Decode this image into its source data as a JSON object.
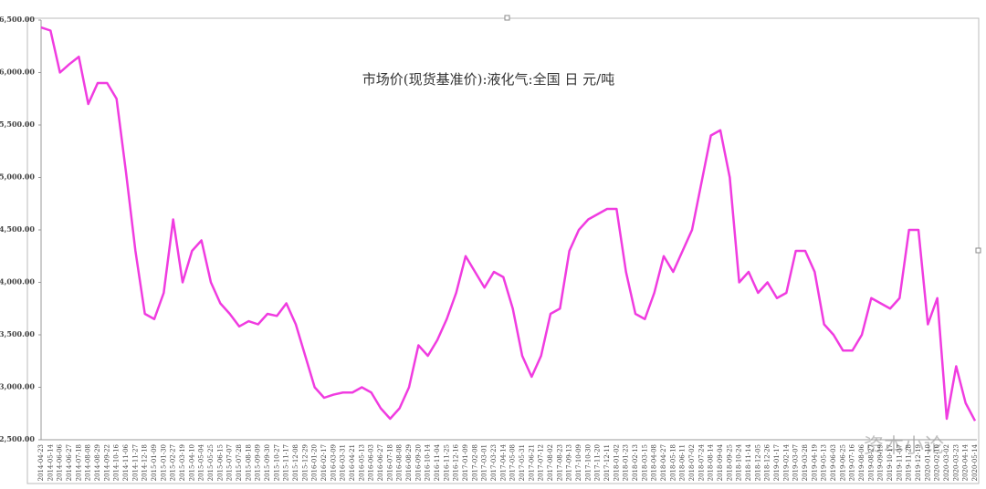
{
  "chart_data": {
    "type": "line",
    "title": "市场价(现货基准价):液化气:全国 日 元/吨",
    "watermark": "资本小论",
    "categories": [
      "2014-04-23",
      "2014-05-14",
      "2014-06-06",
      "2014-06-27",
      "2014-07-18",
      "2014-08-08",
      "2014-08-29",
      "2014-09-22",
      "2014-10-16",
      "2014-11-06",
      "2014-11-27",
      "2014-12-18",
      "2015-01-09",
      "2015-01-30",
      "2015-02-27",
      "2015-03-19",
      "2015-04-10",
      "2015-05-04",
      "2015-05-25",
      "2015-06-15",
      "2015-07-07",
      "2015-07-28",
      "2015-08-18",
      "2015-09-09",
      "2015-09-30",
      "2015-10-27",
      "2015-11-17",
      "2015-12-08",
      "2015-12-29",
      "2016-01-20",
      "2016-02-17",
      "2016-03-09",
      "2016-03-31",
      "2016-04-21",
      "2016-05-13",
      "2016-06-03",
      "2016-06-27",
      "2016-07-18",
      "2016-08-08",
      "2016-08-29",
      "2016-09-20",
      "2016-10-14",
      "2016-11-04",
      "2016-11-25",
      "2016-12-16",
      "2017-01-09",
      "2017-02-08",
      "2017-03-01",
      "2017-03-23",
      "2017-04-14",
      "2017-05-08",
      "2017-05-31",
      "2017-06-21",
      "2017-07-12",
      "2017-08-02",
      "2017-08-23",
      "2017-09-13",
      "2017-10-09",
      "2017-10-30",
      "2017-11-20",
      "2017-12-11",
      "2018-01-02",
      "2018-01-23",
      "2018-02-13",
      "2018-03-15",
      "2018-04-08",
      "2018-04-27",
      "2018-05-18",
      "2018-06-11",
      "2018-07-02",
      "2018-07-24",
      "2018-08-14",
      "2018-09-04",
      "2018-09-25",
      "2018-10-24",
      "2018-11-14",
      "2018-12-05",
      "2018-12-26",
      "2019-01-17",
      "2019-02-14",
      "2019-03-07",
      "2019-03-28",
      "2019-04-19",
      "2019-05-13",
      "2019-06-03",
      "2019-06-25",
      "2019-07-16",
      "2019-08-06",
      "2019-08-27",
      "2019-09-19",
      "2019-10-17",
      "2019-11-07",
      "2019-11-28",
      "2019-12-19",
      "2020-01-10",
      "2020-02-10",
      "2020-03-02",
      "2020-03-23",
      "2020-04-14",
      "2020-05-14"
    ],
    "series": [
      {
        "name": "市场价(现货基准价):液化气:全国",
        "color": "#f03ce0",
        "values": [
          6430,
          6400,
          6000,
          6080,
          6150,
          5700,
          5900,
          5900,
          5750,
          5050,
          4300,
          3700,
          3650,
          3900,
          4600,
          4000,
          4300,
          4400,
          4000,
          3800,
          3700,
          3580,
          3630,
          3600,
          3700,
          3680,
          3800,
          3600,
          3300,
          3000,
          2900,
          2930,
          2950,
          2950,
          3000,
          2950,
          2800,
          2700,
          2800,
          3000,
          3400,
          3300,
          3450,
          3650,
          3900,
          4250,
          4100,
          3950,
          4100,
          4050,
          3750,
          3300,
          3100,
          3300,
          3700,
          3750,
          4300,
          4500,
          4600,
          4650,
          4700,
          4700,
          4100,
          3700,
          3650,
          3900,
          4250,
          4100,
          4300,
          4500,
          4950,
          5400,
          5450,
          5000,
          4000,
          4100,
          3900,
          4000,
          3850,
          3900,
          4300,
          4300,
          4100,
          3600,
          3500,
          3350,
          3350,
          3500,
          3850,
          3800,
          3750,
          3850,
          4500,
          4500,
          3600,
          3850,
          2700,
          3200,
          2850,
          2680
        ]
      }
    ],
    "ylim": [
      2500,
      6500
    ],
    "yticks": [
      {
        "value": 2500,
        "label": "2,500.00"
      },
      {
        "value": 3000,
        "label": "3,000.00"
      },
      {
        "value": 3500,
        "label": "3,500.00"
      },
      {
        "value": 4000,
        "label": "4,000.00"
      },
      {
        "value": 4500,
        "label": "4,500.00"
      },
      {
        "value": 5000,
        "label": "5,000.00"
      },
      {
        "value": 5500,
        "label": "5,500.00"
      },
      {
        "value": 6000,
        "label": "6,000.00"
      },
      {
        "value": 6500,
        "label": "6,500.00"
      }
    ],
    "grid": false
  }
}
